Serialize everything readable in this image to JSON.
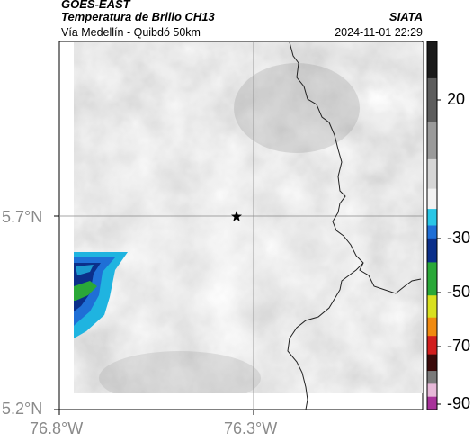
{
  "header": {
    "satellite": "GOES-EAST",
    "product": "Temperatura de Brillo CH13",
    "region": "Vía Medellín - Quibdó 50km",
    "organization": "SIATA",
    "timestamp": "2024-11-01 22:29"
  },
  "axes": {
    "lat_labels": [
      "5.7°N",
      "5.2°N"
    ],
    "lon_labels": [
      "76.8°W",
      "76.3°W"
    ]
  },
  "colorbar": {
    "labels": [
      "20",
      "-30",
      "-50",
      "-70",
      "-90"
    ],
    "stops": [
      {
        "color": "#1a1a1a"
      },
      {
        "color": "#5c5c5c"
      },
      {
        "color": "#9a9a9a"
      },
      {
        "color": "#d6d6d6"
      },
      {
        "color": "#f2f2f2"
      },
      {
        "color": "#29c6e6"
      },
      {
        "color": "#1f6fd6"
      },
      {
        "color": "#0b2f8a"
      },
      {
        "color": "#2aa838"
      },
      {
        "color": "#d8e020"
      },
      {
        "color": "#f08a10"
      },
      {
        "color": "#d21e1e"
      },
      {
        "color": "#3a0a0a"
      },
      {
        "color": "#7a7a7a"
      },
      {
        "color": "#e6b8d8"
      },
      {
        "color": "#a8329a"
      }
    ]
  },
  "map": {
    "marker": "station-star-icon",
    "background_color": "#c8c8c8",
    "cloud_colors": [
      "#1fb4e0",
      "#1f6fd6",
      "#0b2f8a",
      "#2aa838"
    ]
  }
}
